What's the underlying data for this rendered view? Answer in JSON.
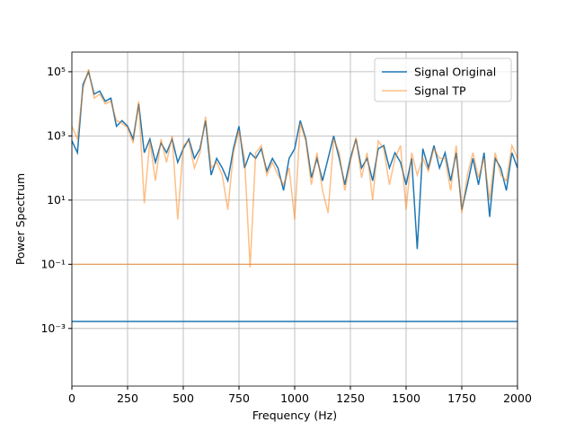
{
  "chart_data": {
    "type": "line",
    "xlabel": "Frequency (Hz)",
    "ylabel": "Power Spectrum",
    "x": [
      0,
      25,
      50,
      75,
      100,
      125,
      150,
      175,
      200,
      225,
      250,
      275,
      300,
      325,
      350,
      375,
      400,
      425,
      450,
      475,
      500,
      525,
      550,
      575,
      600,
      625,
      650,
      675,
      700,
      725,
      750,
      775,
      800,
      825,
      850,
      875,
      900,
      925,
      950,
      975,
      1000,
      1025,
      1050,
      1075,
      1100,
      1125,
      1150,
      1175,
      1200,
      1225,
      1250,
      1275,
      1300,
      1325,
      1350,
      1375,
      1400,
      1425,
      1450,
      1475,
      1500,
      1525,
      1550,
      1575,
      1600,
      1625,
      1650,
      1675,
      1700,
      1725,
      1750,
      1775,
      1800,
      1825,
      1850,
      1875,
      1900,
      1925,
      1950,
      1975,
      2000
    ],
    "series": [
      {
        "name": "Signal Original",
        "color": "#1f77b4",
        "opacity": 1,
        "floor": 0.00166,
        "values": [
          700,
          300,
          40000,
          100000,
          20000,
          25000,
          12000,
          15000,
          2000,
          3000,
          2000,
          800,
          10000,
          300,
          800,
          150,
          600,
          300,
          800,
          150,
          400,
          800,
          200,
          400,
          3000,
          60,
          200,
          100,
          40,
          400,
          2000,
          100,
          300,
          200,
          400,
          80,
          200,
          100,
          20,
          200,
          400,
          3000,
          800,
          50,
          200,
          40,
          200,
          1000,
          200,
          30,
          200,
          800,
          100,
          200,
          40,
          400,
          500,
          100,
          300,
          150,
          30,
          200,
          0.3,
          400,
          100,
          500,
          100,
          300,
          40,
          300,
          5,
          30,
          200,
          30,
          300,
          3,
          200,
          100,
          20,
          300,
          100
        ]
      },
      {
        "name": "Signal TP",
        "color": "#ff7f0e",
        "opacity": 0.5,
        "floor": 0.1,
        "values": [
          2000,
          800,
          30000,
          120000,
          15000,
          20000,
          10000,
          12000,
          3000,
          2500,
          1800,
          600,
          12000,
          8,
          700,
          40,
          800,
          150,
          1000,
          2.5,
          500,
          700,
          100,
          300,
          4000,
          100,
          150,
          60,
          5,
          300,
          1500,
          200,
          0.08,
          300,
          500,
          60,
          150,
          60,
          30,
          100,
          2.5,
          2500,
          700,
          30,
          300,
          20,
          4,
          800,
          300,
          20,
          150,
          900,
          50,
          300,
          10,
          700,
          400,
          30,
          200,
          500,
          5,
          300,
          60,
          200,
          80,
          400,
          200,
          200,
          20,
          500,
          4,
          60,
          300,
          50,
          200,
          10,
          300,
          60,
          40,
          500,
          200
        ]
      }
    ],
    "xlim": [
      0,
      2000
    ],
    "xticks": [
      0,
      250,
      500,
      750,
      1000,
      1250,
      1500,
      1750,
      2000
    ],
    "ylim": [
      1.6e-05,
      410000
    ],
    "log_y": true,
    "yticks": [
      {
        "value": 0.001,
        "label": "10⁻³"
      },
      {
        "value": 0.1,
        "label": "10⁻¹"
      },
      {
        "value": 10,
        "label": "10¹"
      },
      {
        "value": 1000,
        "label": "10³"
      },
      {
        "value": 100000,
        "label": "10⁵"
      }
    ],
    "grid": true,
    "legend": "upper right"
  }
}
